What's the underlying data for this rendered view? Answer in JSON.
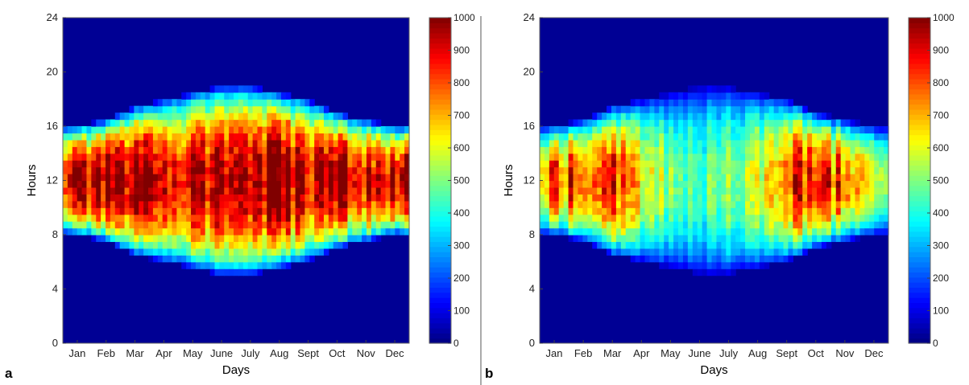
{
  "chart_data": [
    {
      "type": "heatmap",
      "panel_label": "a",
      "xlabel": "Days",
      "ylabel": "Hours",
      "x_ticks": [
        "Jan",
        "Feb",
        "Mar",
        "Apr",
        "May",
        "June",
        "July",
        "Aug",
        "Sept",
        "Oct",
        "Nov",
        "Dec"
      ],
      "y_ticks": [
        0,
        4,
        8,
        12,
        16,
        20,
        24
      ],
      "ylim": [
        0,
        24
      ],
      "colorbar": {
        "colormap": "jet",
        "range": [
          0,
          1000
        ],
        "ticks": [
          0,
          100,
          200,
          300,
          400,
          500,
          600,
          700,
          800,
          900,
          1000
        ]
      },
      "monthly_peak_value": [
        950,
        1000,
        1000,
        1000,
        990,
        1000,
        1000,
        1000,
        1000,
        1000,
        1000,
        980
      ],
      "monthly_daylight_hours": [
        [
          8,
          16
        ],
        [
          7.5,
          16.5
        ],
        [
          6.5,
          17.5
        ],
        [
          6,
          18
        ],
        [
          5.5,
          18.5
        ],
        [
          5,
          19
        ],
        [
          5,
          19
        ],
        [
          5.5,
          18.5
        ],
        [
          6,
          18
        ],
        [
          7,
          17
        ],
        [
          7.5,
          16.5
        ],
        [
          8,
          16
        ]
      ]
    },
    {
      "type": "heatmap",
      "panel_label": "b",
      "xlabel": "Days",
      "ylabel": "Hours",
      "x_ticks": [
        "Jan",
        "Feb",
        "Mar",
        "Apr",
        "May",
        "June",
        "July",
        "Aug",
        "Sept",
        "Oct",
        "Nov",
        "Dec"
      ],
      "y_ticks": [
        0,
        4,
        8,
        12,
        16,
        20,
        24
      ],
      "ylim": [
        0,
        24
      ],
      "colorbar": {
        "colormap": "jet",
        "range": [
          0,
          1000
        ],
        "ticks": [
          0,
          100,
          200,
          300,
          400,
          500,
          600,
          700,
          800,
          900,
          1000
        ]
      },
      "monthly_peak_value": [
        820,
        900,
        900,
        660,
        560,
        480,
        520,
        600,
        880,
        900,
        820,
        640
      ],
      "monthly_daylight_hours": [
        [
          8,
          16
        ],
        [
          7.5,
          16.5
        ],
        [
          6.5,
          17.5
        ],
        [
          6,
          18
        ],
        [
          5.5,
          18.5
        ],
        [
          5,
          19
        ],
        [
          5,
          19
        ],
        [
          5.5,
          18.5
        ],
        [
          6,
          18
        ],
        [
          7,
          17
        ],
        [
          7.5,
          16.5
        ],
        [
          8,
          16
        ]
      ]
    }
  ]
}
